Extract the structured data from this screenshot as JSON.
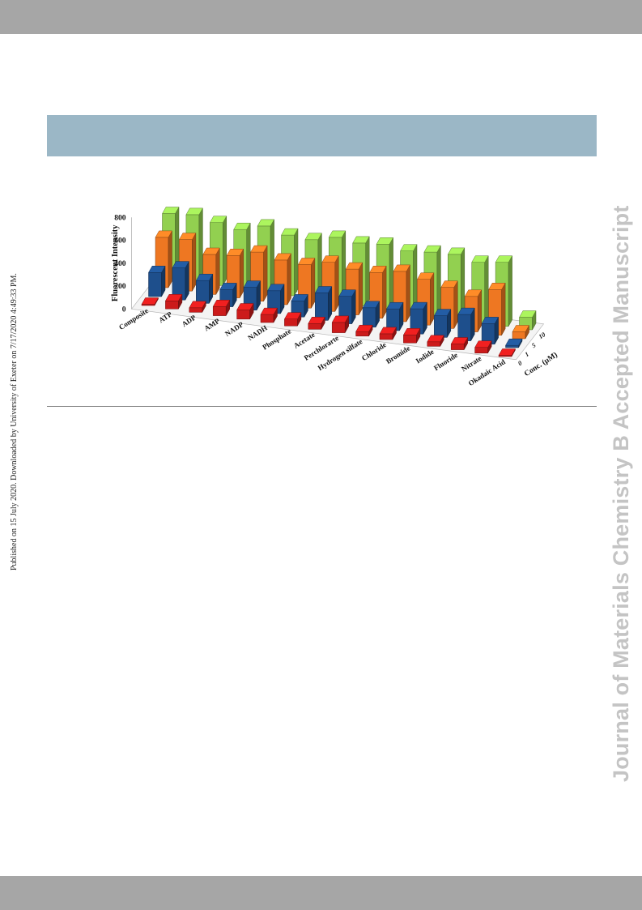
{
  "page": {
    "side_note": "Published on 15 July 2020. Downloaded by University of Exeter on 7/17/2020 4:49:33 PM.",
    "watermark": "Journal of Materials Chemistry B Accepted Manuscript",
    "colors": {
      "bar_band": "#a6a6a6",
      "title_band": "#9bb7c6",
      "rule": "#808080",
      "watermark": "#c4c4c4"
    }
  },
  "chart_data": {
    "type": "bar",
    "title": "",
    "ylabel": "Fluorescent Intensity",
    "zlabel": "Conc. (μM)",
    "ylim": [
      0,
      800
    ],
    "yticks": [
      0,
      200,
      400,
      600,
      800
    ],
    "grid": false,
    "legend": "none",
    "categories": [
      "Composite",
      "ATP",
      "ADP",
      "AMP",
      "NADP",
      "NADH",
      "Phosphate",
      "Acetate",
      "Perchlorarte",
      "Hydrogen silfate",
      "Chloride",
      "Bromide",
      "Iodide",
      "Fluoride",
      "Nitrate",
      "Okadaic Acid"
    ],
    "series": [
      {
        "name": "0",
        "color": "#cc1b1b",
        "values": [
          10,
          70,
          40,
          80,
          80,
          70,
          60,
          50,
          90,
          40,
          50,
          70,
          40,
          50,
          50,
          10
        ]
      },
      {
        "name": "1",
        "color": "#1e4f8c",
        "values": [
          210,
          280,
          200,
          150,
          200,
          200,
          140,
          240,
          240,
          170,
          190,
          220,
          190,
          230,
          180,
          20
        ]
      },
      {
        "name": "5",
        "color": "#ee7722",
        "values": [
          440,
          450,
          350,
          370,
          430,
          390,
          380,
          430,
          400,
          400,
          440,
          400,
          360,
          310,
          400,
          60
        ]
      },
      {
        "name": "10",
        "color": "#92d050",
        "values": [
          570,
          590,
          550,
          520,
          580,
          530,
          520,
          570,
          550,
          570,
          540,
          560,
          570,
          530,
          560,
          110
        ]
      }
    ]
  }
}
